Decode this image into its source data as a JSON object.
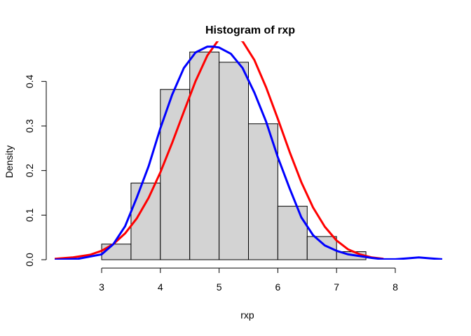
{
  "chart_data": {
    "type": "bar",
    "title": "Histogram of rxp",
    "xlabel": "rxp",
    "ylabel": "Density",
    "xlim": [
      2.2,
      8.8
    ],
    "ylim": [
      0,
      0.49
    ],
    "x_ticks": [
      3,
      4,
      5,
      6,
      7,
      8
    ],
    "y_ticks": [
      0.0,
      0.1,
      0.2,
      0.3,
      0.4
    ],
    "grid": false,
    "legend": "none",
    "bins": [
      {
        "from": 3.0,
        "to": 3.5,
        "density": 0.035
      },
      {
        "from": 3.5,
        "to": 4.0,
        "density": 0.172
      },
      {
        "from": 4.0,
        "to": 4.5,
        "density": 0.382
      },
      {
        "from": 4.5,
        "to": 5.0,
        "density": 0.466
      },
      {
        "from": 5.0,
        "to": 5.5,
        "density": 0.443
      },
      {
        "from": 5.5,
        "to": 6.0,
        "density": 0.305
      },
      {
        "from": 6.0,
        "to": 6.5,
        "density": 0.12
      },
      {
        "from": 6.5,
        "to": 7.0,
        "density": 0.052
      },
      {
        "from": 7.0,
        "to": 7.5,
        "density": 0.018
      }
    ],
    "bar_color": "#d3d3d3",
    "series": [
      {
        "kind": "curve",
        "color": "#ff0000",
        "x": [
          2.2,
          2.5,
          2.8,
          3.0,
          3.2,
          3.4,
          3.6,
          3.8,
          4.0,
          4.2,
          4.4,
          4.6,
          4.8,
          5.0,
          5.2,
          5.4,
          5.6,
          5.8,
          6.0,
          6.2,
          6.4,
          6.6,
          6.8,
          7.0,
          7.2,
          7.4,
          7.6,
          7.8
        ],
        "y": [
          0.002,
          0.005,
          0.011,
          0.02,
          0.035,
          0.059,
          0.093,
          0.139,
          0.196,
          0.262,
          0.332,
          0.401,
          0.458,
          0.495,
          0.506,
          0.49,
          0.448,
          0.387,
          0.316,
          0.242,
          0.174,
          0.117,
          0.074,
          0.043,
          0.023,
          0.012,
          0.005,
          0.002
        ]
      },
      {
        "kind": "curve",
        "color": "#0000ff",
        "x": [
          2.2,
          2.6,
          3.0,
          3.2,
          3.4,
          3.6,
          3.8,
          4.0,
          4.2,
          4.4,
          4.6,
          4.8,
          4.9,
          5.0,
          5.2,
          5.4,
          5.6,
          5.8,
          6.0,
          6.2,
          6.4,
          6.6,
          6.8,
          7.0,
          7.2,
          7.4,
          7.6,
          7.8,
          8.0,
          8.2,
          8.4,
          8.6,
          8.8
        ],
        "y": [
          0.0,
          0.002,
          0.012,
          0.035,
          0.075,
          0.14,
          0.21,
          0.295,
          0.37,
          0.43,
          0.465,
          0.478,
          0.478,
          0.476,
          0.462,
          0.43,
          0.375,
          0.31,
          0.23,
          0.16,
          0.095,
          0.055,
          0.032,
          0.02,
          0.012,
          0.008,
          0.004,
          0.001,
          0.001,
          0.003,
          0.005,
          0.003,
          0.001
        ]
      }
    ]
  }
}
